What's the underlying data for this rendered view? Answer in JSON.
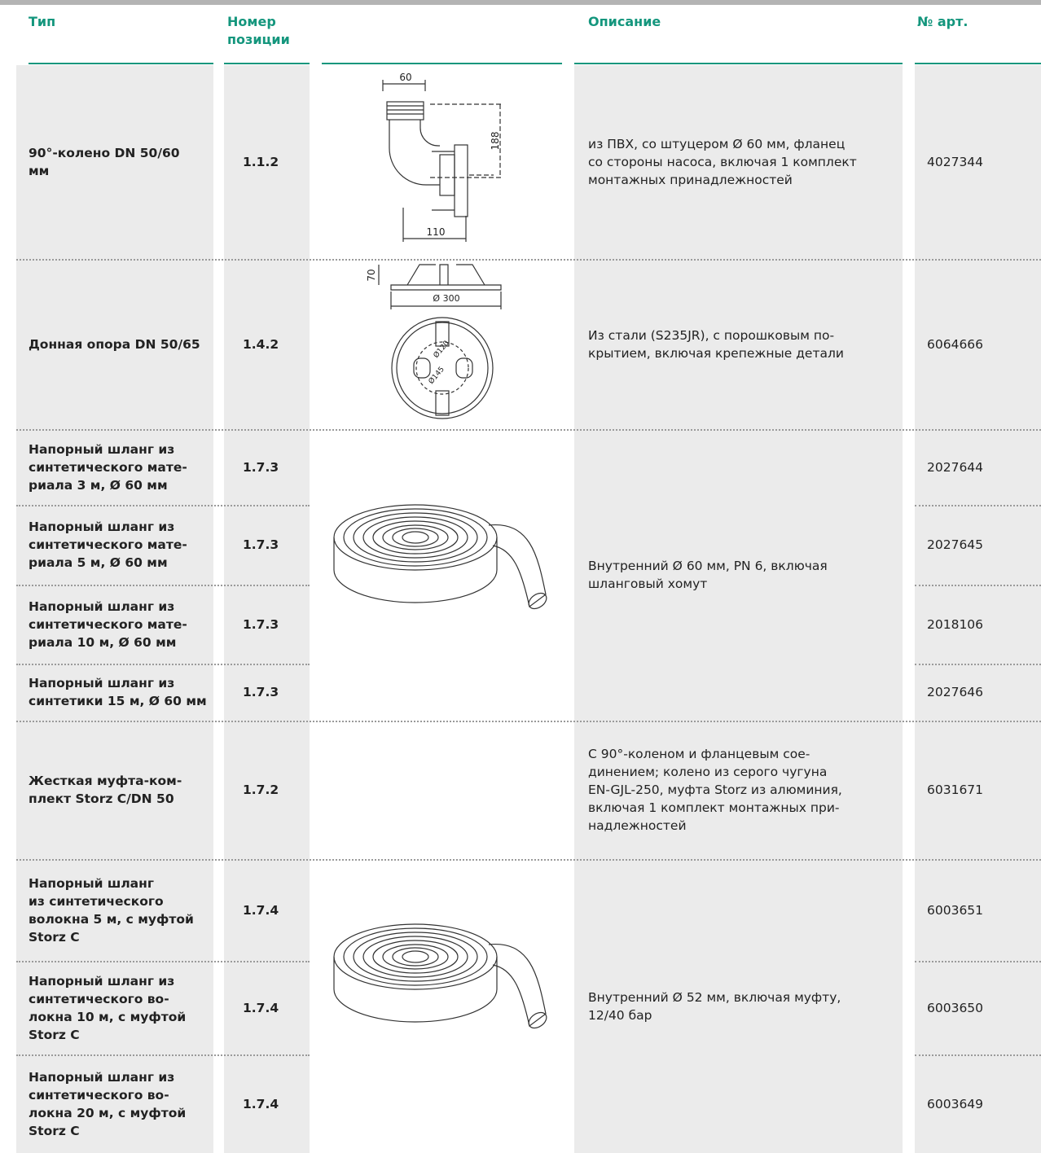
{
  "header": {
    "type": "Тип",
    "position": "Номер\nпозиции",
    "description": "Описание",
    "article": "№ арт."
  },
  "rows": [
    {
      "type": "90°-колено DN 50/60\nмм",
      "position": "1.1.2",
      "article": "4027344"
    },
    {
      "type": "Донная опора DN 50/65",
      "position": "1.4.2",
      "article": "6064666"
    },
    {
      "type": "Напорный шланг из\nсинтетического мате-\nриала 3 м, Ø 60 мм",
      "position": "1.7.3",
      "article": "2027644"
    },
    {
      "type": "Напорный шланг из\nсинтетического мате-\nриала 5 м, Ø 60 мм",
      "position": "1.7.3",
      "article": "2027645"
    },
    {
      "type": "Напорный шланг из\nсинтетического мате-\nриала 10 м, Ø 60 мм",
      "position": "1.7.3",
      "article": "2018106"
    },
    {
      "type": "Напорный шланг из\nсинтетики 15 м, Ø 60 мм",
      "position": "1.7.3",
      "article": "2027646"
    },
    {
      "type": "Жесткая муфта-ком-\nплект Storz C/DN 50",
      "position": "1.7.2",
      "article": "6031671"
    },
    {
      "type": "Напорный шланг\nиз синтетического\nволокна 5 м, с муфтой\nStorz C",
      "position": "1.7.4",
      "article": "6003651"
    },
    {
      "type": "Напорный шланг из\nсинтетического во-\nлокна 10 м, с муфтой\nStorz C",
      "position": "1.7.4",
      "article": "6003650"
    },
    {
      "type": "Напорный шланг из\nсинтетического во-\nлокна 20 м, с муфтой\nStorz C",
      "position": "1.7.4",
      "article": "6003649"
    }
  ],
  "descriptions": [
    "из ПВХ, со штуцером Ø 60 мм, фланец\nсо стороны насоса, включая 1 комплект\nмонтажных принадлежностей",
    "Из стали (S235JR), с порошковым по-\nкрытием, включая крепежные детали",
    "Внутренний Ø 60 мм, PN 6, включая\nшланговый хомут",
    "С 90°-коленом и фланцевым сое-\nдинением; колено из серого чугуна\nEN-GJL-250, муфта Storz из алюминия,\nвключая 1 комплект монтажных при-\nнадлежностей",
    "Внутренний Ø 52 мм, включая муфту,\n12/40 бар"
  ],
  "drawings": {
    "elbow": {
      "width": "60",
      "height": "188",
      "depth": "110"
    },
    "base": {
      "height": "70",
      "diameter": "Ø 300",
      "inner": "Ø120",
      "outer": "Ø145"
    }
  }
}
